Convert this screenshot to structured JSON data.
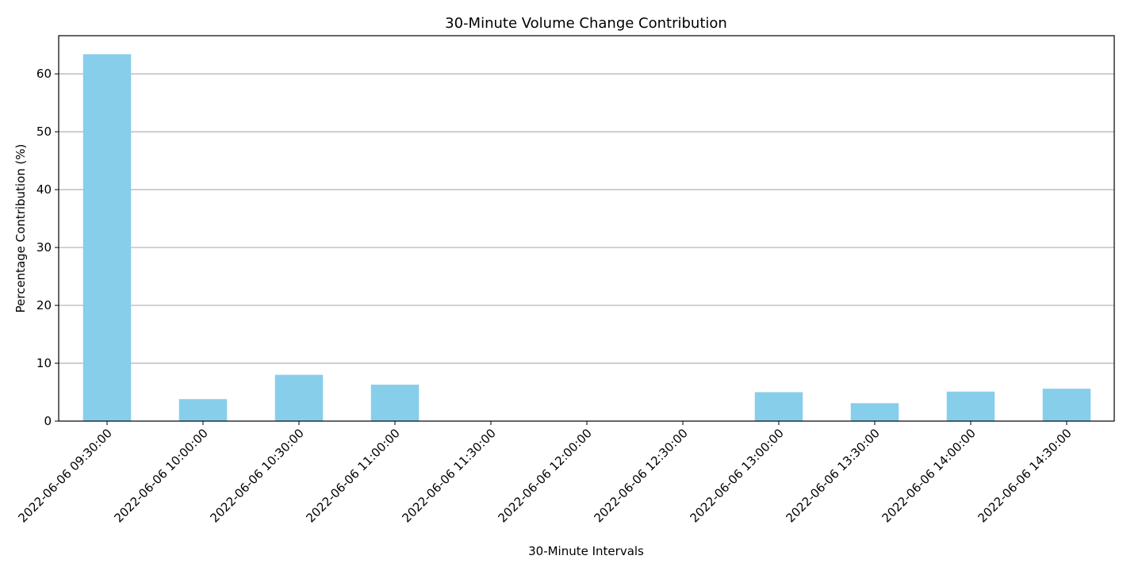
{
  "chart_data": {
    "type": "bar",
    "title": "30-Minute Volume Change Contribution",
    "xlabel": "30-Minute Intervals",
    "ylabel": "Percentage Contribution (%)",
    "categories": [
      "2022-06-06 09:30:00",
      "2022-06-06 10:00:00",
      "2022-06-06 10:30:00",
      "2022-06-06 11:00:00",
      "2022-06-06 11:30:00",
      "2022-06-06 12:00:00",
      "2022-06-06 12:30:00",
      "2022-06-06 13:00:00",
      "2022-06-06 13:30:00",
      "2022-06-06 14:00:00",
      "2022-06-06 14:30:00"
    ],
    "values": [
      63.4,
      3.8,
      8.0,
      6.3,
      0,
      0,
      0,
      5.0,
      3.1,
      5.1,
      5.6
    ],
    "ylim": [
      0,
      66.6
    ],
    "yticks": [
      0,
      10,
      20,
      30,
      40,
      50,
      60
    ],
    "grid": "y",
    "bar_color": "#87ceeb",
    "x_tick_rotation": 45
  }
}
